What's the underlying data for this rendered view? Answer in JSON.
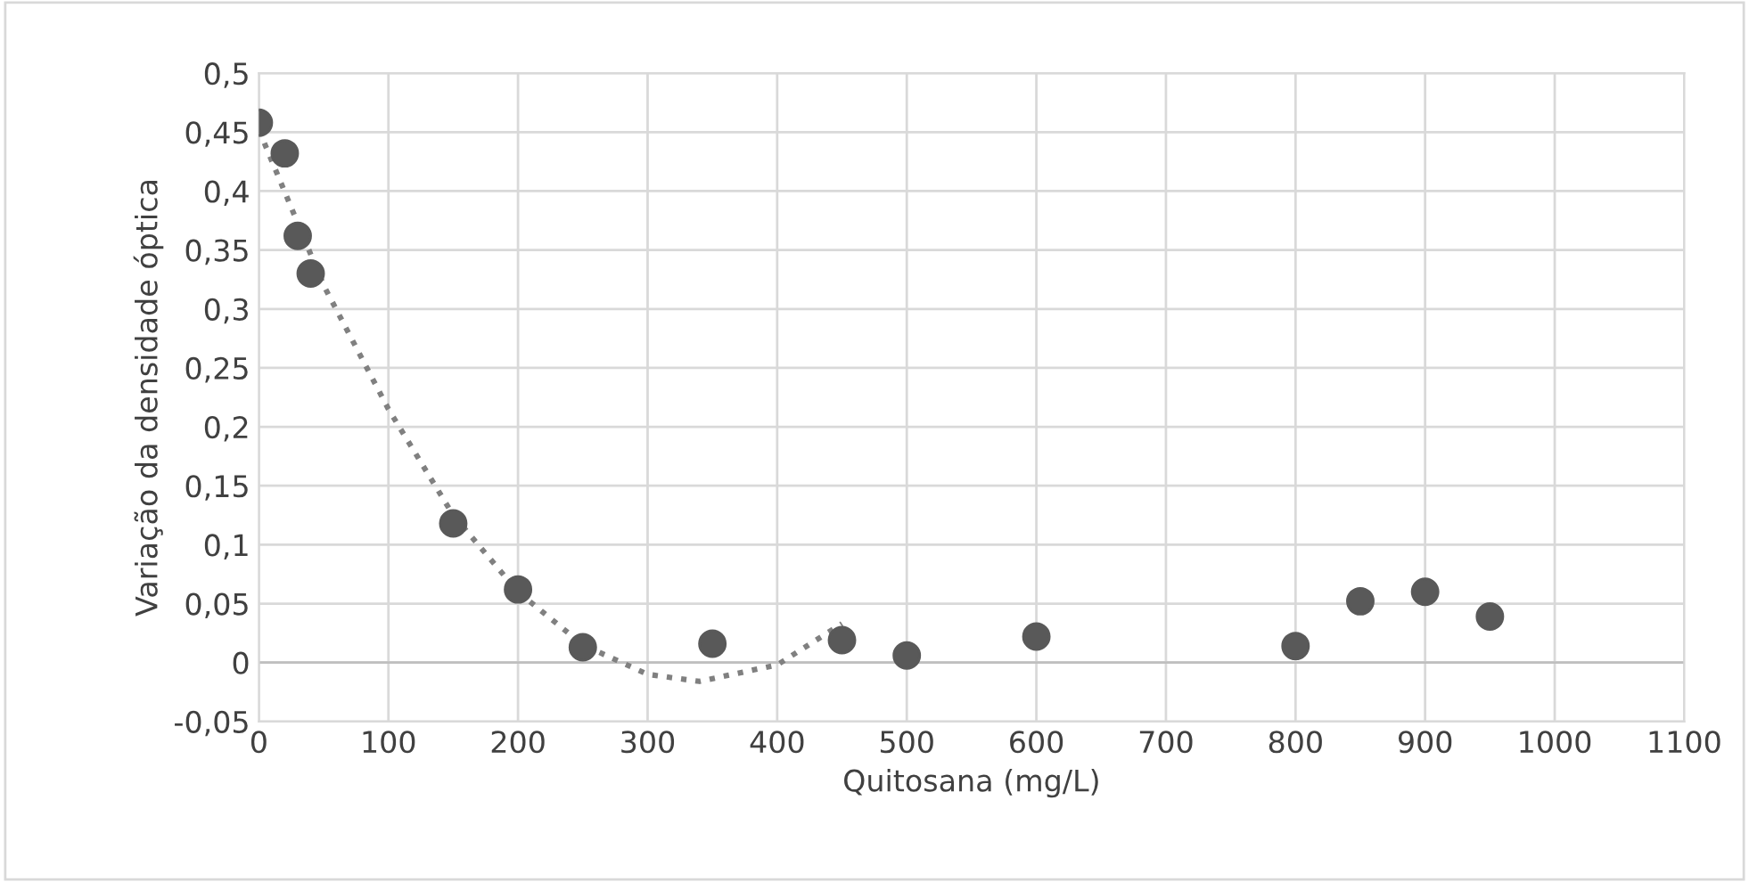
{
  "chart_data": {
    "type": "scatter",
    "xlabel": "Quitosana (mg/L)",
    "ylabel": "Variação da densidade óptica",
    "xlim": [
      0,
      1100
    ],
    "xticks": [
      0,
      100,
      200,
      300,
      400,
      500,
      600,
      700,
      800,
      900,
      1000,
      1100
    ],
    "ylim": [
      -0.05,
      0.5
    ],
    "yticks": [
      {
        "value": -0.05,
        "label": "-0,05"
      },
      {
        "value": 0,
        "label": "0"
      },
      {
        "value": 0.05,
        "label": "0,05"
      },
      {
        "value": 0.1,
        "label": "0,1"
      },
      {
        "value": 0.15,
        "label": "0,15"
      },
      {
        "value": 0.2,
        "label": "0,2"
      },
      {
        "value": 0.25,
        "label": "0,25"
      },
      {
        "value": 0.3,
        "label": "0,3"
      },
      {
        "value": 0.35,
        "label": "0,35"
      },
      {
        "value": 0.4,
        "label": "0,4"
      },
      {
        "value": 0.45,
        "label": "0,45"
      },
      {
        "value": 0.5,
        "label": "0,5"
      }
    ],
    "grid": true,
    "legend": false,
    "series": [
      {
        "color": "#595959",
        "marker": "circle",
        "x": [
          0,
          20,
          30,
          40,
          150,
          200,
          250,
          350,
          450,
          500,
          600,
          800,
          850,
          900,
          950
        ],
        "values": [
          0.458,
          0.432,
          0.362,
          0.33,
          0.118,
          0.062,
          0.013,
          0.016,
          0.019,
          0.006,
          0.022,
          0.014,
          0.052,
          0.06,
          0.039
        ]
      },
      {
        "type": "line",
        "color": "#808080",
        "line_style": "dotted",
        "marker": "none",
        "x": [
          0,
          50,
          100,
          150,
          200,
          250,
          300,
          340,
          400,
          450
        ],
        "values": [
          0.452,
          0.32,
          0.215,
          0.125,
          0.06,
          0.015,
          -0.01,
          -0.016,
          -0.002,
          0.033
        ]
      }
    ]
  }
}
